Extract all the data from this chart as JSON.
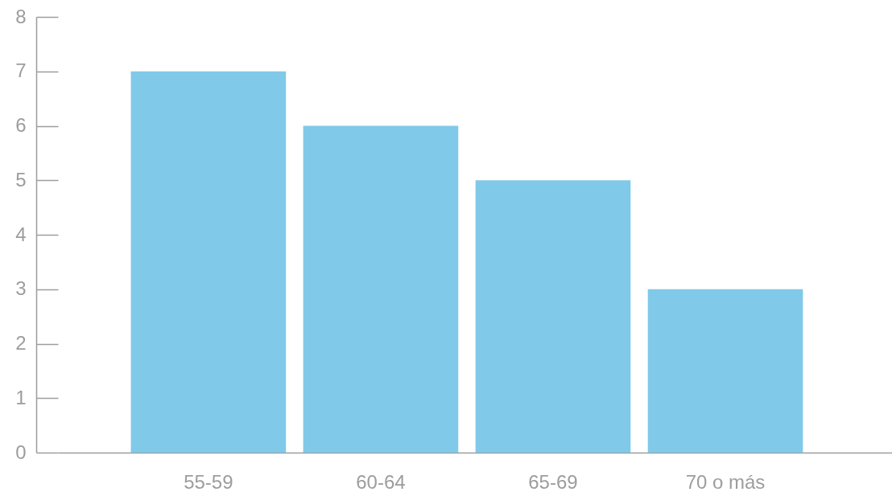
{
  "chart_data": {
    "type": "bar",
    "categories": [
      "55-59",
      "60-64",
      "65-69",
      "70 o más"
    ],
    "values": [
      7,
      6,
      5,
      3
    ],
    "color": "#80c9e9",
    "ylim": [
      0,
      8
    ],
    "yticks": [
      0,
      1,
      2,
      3,
      4,
      5,
      6,
      7,
      8
    ],
    "grid": false
  }
}
